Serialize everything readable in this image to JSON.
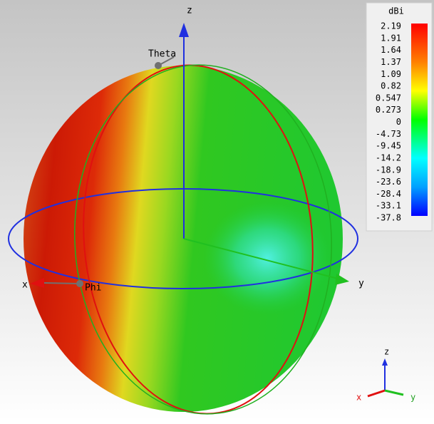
{
  "axes": {
    "z": "z",
    "y": "y",
    "x": "x",
    "theta": "Theta",
    "phi": "Phi"
  },
  "colorbar": {
    "title": "dBi",
    "labels": [
      "2.19",
      "1.91",
      "1.64",
      "1.37",
      "1.09",
      "0.82",
      "0.547",
      "0.273",
      "0",
      "-4.73",
      "-9.45",
      "-14.2",
      "-18.9",
      "-23.6",
      "-28.4",
      "-33.1",
      "-37.8"
    ]
  },
  "triad": {
    "z": "z",
    "x": "x",
    "y": "y"
  }
}
